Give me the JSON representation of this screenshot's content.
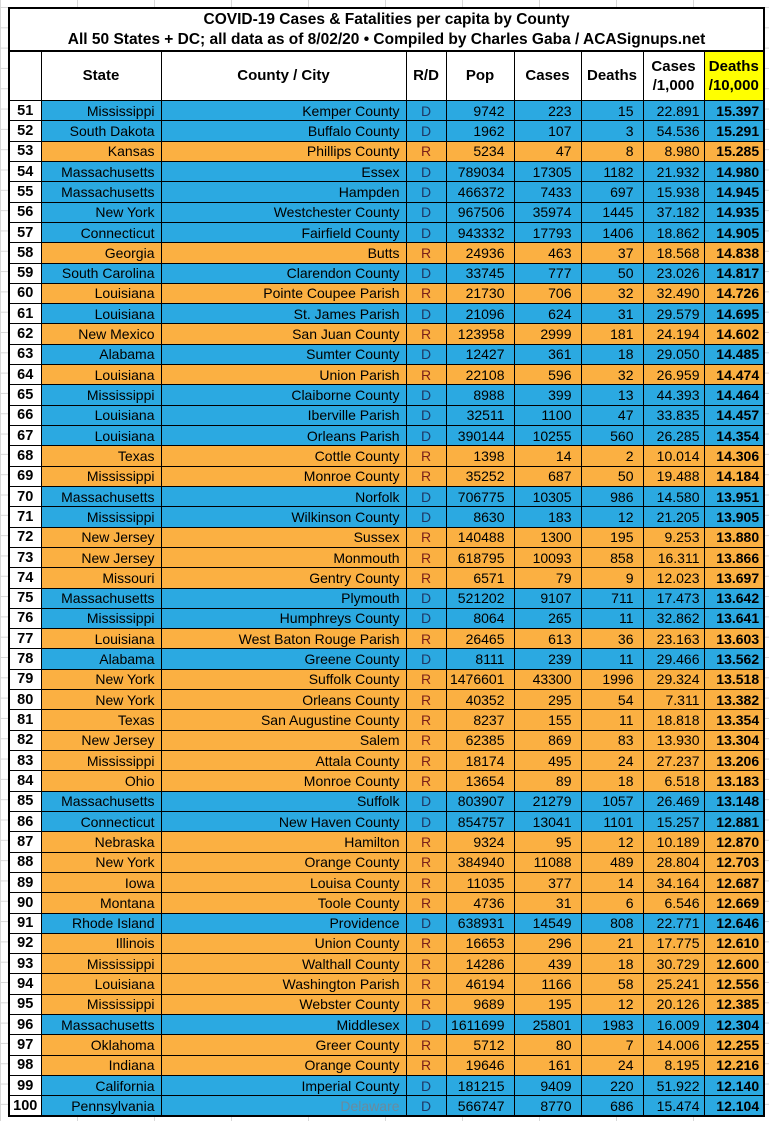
{
  "title": {
    "line1": "COVID-19 Cases & Fatalities per capita by County",
    "line2": "All 50 States + DC; all data as of 8/02/20 • Compiled by Charles Gaba / ACASignups.net"
  },
  "colors": {
    "dem_row": "#2ba9e1",
    "rep_row": "#fbb042",
    "header_highlight": "#ffff00",
    "dem_letter": "#1f3864",
    "rep_letter": "#7b2018",
    "muted_county": "#6c8a9c"
  },
  "columns": [
    {
      "key": "n",
      "label": ""
    },
    {
      "key": "state",
      "label": "State"
    },
    {
      "key": "county",
      "label": "County / City"
    },
    {
      "key": "rd",
      "label": "R/D"
    },
    {
      "key": "pop",
      "label": "Pop"
    },
    {
      "key": "cases",
      "label": "Cases"
    },
    {
      "key": "deaths",
      "label": "Deaths"
    },
    {
      "key": "cases_k",
      "label": "Cases",
      "label2": "/1,000"
    },
    {
      "key": "deaths_10k",
      "label": "Deaths",
      "label2": "/10,000",
      "highlight": true
    }
  ],
  "rows": [
    {
      "n": "51",
      "state": "Mississippi",
      "county": "Kemper County",
      "rd": "D",
      "pop": "9742",
      "cases": "223",
      "deaths": "15",
      "cases_k": "22.891",
      "deaths_10k": "15.397"
    },
    {
      "n": "52",
      "state": "South Dakota",
      "county": "Buffalo County",
      "rd": "D",
      "pop": "1962",
      "cases": "107",
      "deaths": "3",
      "cases_k": "54.536",
      "deaths_10k": "15.291"
    },
    {
      "n": "53",
      "state": "Kansas",
      "county": "Phillips County",
      "rd": "R",
      "pop": "5234",
      "cases": "47",
      "deaths": "8",
      "cases_k": "8.980",
      "deaths_10k": "15.285"
    },
    {
      "n": "54",
      "state": "Massachusetts",
      "county": "Essex",
      "rd": "D",
      "pop": "789034",
      "cases": "17305",
      "deaths": "1182",
      "cases_k": "21.932",
      "deaths_10k": "14.980"
    },
    {
      "n": "55",
      "state": "Massachusetts",
      "county": "Hampden",
      "rd": "D",
      "pop": "466372",
      "cases": "7433",
      "deaths": "697",
      "cases_k": "15.938",
      "deaths_10k": "14.945"
    },
    {
      "n": "56",
      "state": "New York",
      "county": "Westchester County",
      "rd": "D",
      "pop": "967506",
      "cases": "35974",
      "deaths": "1445",
      "cases_k": "37.182",
      "deaths_10k": "14.935"
    },
    {
      "n": "57",
      "state": "Connecticut",
      "county": "Fairfield County",
      "rd": "D",
      "pop": "943332",
      "cases": "17793",
      "deaths": "1406",
      "cases_k": "18.862",
      "deaths_10k": "14.905"
    },
    {
      "n": "58",
      "state": "Georgia",
      "county": "Butts",
      "rd": "R",
      "pop": "24936",
      "cases": "463",
      "deaths": "37",
      "cases_k": "18.568",
      "deaths_10k": "14.838"
    },
    {
      "n": "59",
      "state": "South Carolina",
      "county": "Clarendon County",
      "rd": "D",
      "pop": "33745",
      "cases": "777",
      "deaths": "50",
      "cases_k": "23.026",
      "deaths_10k": "14.817"
    },
    {
      "n": "60",
      "state": "Louisiana",
      "county": "Pointe Coupee Parish",
      "rd": "R",
      "pop": "21730",
      "cases": "706",
      "deaths": "32",
      "cases_k": "32.490",
      "deaths_10k": "14.726"
    },
    {
      "n": "61",
      "state": "Louisiana",
      "county": "St. James Parish",
      "rd": "D",
      "pop": "21096",
      "cases": "624",
      "deaths": "31",
      "cases_k": "29.579",
      "deaths_10k": "14.695"
    },
    {
      "n": "62",
      "state": "New Mexico",
      "county": "San Juan County",
      "rd": "R",
      "pop": "123958",
      "cases": "2999",
      "deaths": "181",
      "cases_k": "24.194",
      "deaths_10k": "14.602"
    },
    {
      "n": "63",
      "state": "Alabama",
      "county": "Sumter County",
      "rd": "D",
      "pop": "12427",
      "cases": "361",
      "deaths": "18",
      "cases_k": "29.050",
      "deaths_10k": "14.485"
    },
    {
      "n": "64",
      "state": "Louisiana",
      "county": "Union Parish",
      "rd": "R",
      "pop": "22108",
      "cases": "596",
      "deaths": "32",
      "cases_k": "26.959",
      "deaths_10k": "14.474"
    },
    {
      "n": "65",
      "state": "Mississippi",
      "county": "Claiborne County",
      "rd": "D",
      "pop": "8988",
      "cases": "399",
      "deaths": "13",
      "cases_k": "44.393",
      "deaths_10k": "14.464"
    },
    {
      "n": "66",
      "state": "Louisiana",
      "county": "Iberville Parish",
      "rd": "D",
      "pop": "32511",
      "cases": "1100",
      "deaths": "47",
      "cases_k": "33.835",
      "deaths_10k": "14.457"
    },
    {
      "n": "67",
      "state": "Louisiana",
      "county": "Orleans Parish",
      "rd": "D",
      "pop": "390144",
      "cases": "10255",
      "deaths": "560",
      "cases_k": "26.285",
      "deaths_10k": "14.354"
    },
    {
      "n": "68",
      "state": "Texas",
      "county": "Cottle County",
      "rd": "R",
      "pop": "1398",
      "cases": "14",
      "deaths": "2",
      "cases_k": "10.014",
      "deaths_10k": "14.306"
    },
    {
      "n": "69",
      "state": "Mississippi",
      "county": "Monroe County",
      "rd": "R",
      "pop": "35252",
      "cases": "687",
      "deaths": "50",
      "cases_k": "19.488",
      "deaths_10k": "14.184"
    },
    {
      "n": "70",
      "state": "Massachusetts",
      "county": "Norfolk",
      "rd": "D",
      "pop": "706775",
      "cases": "10305",
      "deaths": "986",
      "cases_k": "14.580",
      "deaths_10k": "13.951"
    },
    {
      "n": "71",
      "state": "Mississippi",
      "county": "Wilkinson County",
      "rd": "D",
      "pop": "8630",
      "cases": "183",
      "deaths": "12",
      "cases_k": "21.205",
      "deaths_10k": "13.905"
    },
    {
      "n": "72",
      "state": "New Jersey",
      "county": "Sussex",
      "rd": "R",
      "pop": "140488",
      "cases": "1300",
      "deaths": "195",
      "cases_k": "9.253",
      "deaths_10k": "13.880"
    },
    {
      "n": "73",
      "state": "New Jersey",
      "county": "Monmouth",
      "rd": "R",
      "pop": "618795",
      "cases": "10093",
      "deaths": "858",
      "cases_k": "16.311",
      "deaths_10k": "13.866"
    },
    {
      "n": "74",
      "state": "Missouri",
      "county": "Gentry County",
      "rd": "R",
      "pop": "6571",
      "cases": "79",
      "deaths": "9",
      "cases_k": "12.023",
      "deaths_10k": "13.697"
    },
    {
      "n": "75",
      "state": "Massachusetts",
      "county": "Plymouth",
      "rd": "D",
      "pop": "521202",
      "cases": "9107",
      "deaths": "711",
      "cases_k": "17.473",
      "deaths_10k": "13.642"
    },
    {
      "n": "76",
      "state": "Mississippi",
      "county": "Humphreys County",
      "rd": "D",
      "pop": "8064",
      "cases": "265",
      "deaths": "11",
      "cases_k": "32.862",
      "deaths_10k": "13.641"
    },
    {
      "n": "77",
      "state": "Louisiana",
      "county": "West Baton Rouge Parish",
      "rd": "R",
      "pop": "26465",
      "cases": "613",
      "deaths": "36",
      "cases_k": "23.163",
      "deaths_10k": "13.603"
    },
    {
      "n": "78",
      "state": "Alabama",
      "county": "Greene County",
      "rd": "D",
      "pop": "8111",
      "cases": "239",
      "deaths": "11",
      "cases_k": "29.466",
      "deaths_10k": "13.562"
    },
    {
      "n": "79",
      "state": "New York",
      "county": "Suffolk County",
      "rd": "R",
      "pop": "1476601",
      "cases": "43300",
      "deaths": "1996",
      "cases_k": "29.324",
      "deaths_10k": "13.518"
    },
    {
      "n": "80",
      "state": "New York",
      "county": "Orleans County",
      "rd": "R",
      "pop": "40352",
      "cases": "295",
      "deaths": "54",
      "cases_k": "7.311",
      "deaths_10k": "13.382"
    },
    {
      "n": "81",
      "state": "Texas",
      "county": "San Augustine County",
      "rd": "R",
      "pop": "8237",
      "cases": "155",
      "deaths": "11",
      "cases_k": "18.818",
      "deaths_10k": "13.354"
    },
    {
      "n": "82",
      "state": "New Jersey",
      "county": "Salem",
      "rd": "R",
      "pop": "62385",
      "cases": "869",
      "deaths": "83",
      "cases_k": "13.930",
      "deaths_10k": "13.304"
    },
    {
      "n": "83",
      "state": "Mississippi",
      "county": "Attala County",
      "rd": "R",
      "pop": "18174",
      "cases": "495",
      "deaths": "24",
      "cases_k": "27.237",
      "deaths_10k": "13.206"
    },
    {
      "n": "84",
      "state": "Ohio",
      "county": "Monroe County",
      "rd": "R",
      "pop": "13654",
      "cases": "89",
      "deaths": "18",
      "cases_k": "6.518",
      "deaths_10k": "13.183"
    },
    {
      "n": "85",
      "state": "Massachusetts",
      "county": "Suffolk",
      "rd": "D",
      "pop": "803907",
      "cases": "21279",
      "deaths": "1057",
      "cases_k": "26.469",
      "deaths_10k": "13.148"
    },
    {
      "n": "86",
      "state": "Connecticut",
      "county": "New Haven County",
      "rd": "D",
      "pop": "854757",
      "cases": "13041",
      "deaths": "1101",
      "cases_k": "15.257",
      "deaths_10k": "12.881"
    },
    {
      "n": "87",
      "state": "Nebraska",
      "county": "Hamilton",
      "rd": "R",
      "pop": "9324",
      "cases": "95",
      "deaths": "12",
      "cases_k": "10.189",
      "deaths_10k": "12.870"
    },
    {
      "n": "88",
      "state": "New York",
      "county": "Orange County",
      "rd": "R",
      "pop": "384940",
      "cases": "11088",
      "deaths": "489",
      "cases_k": "28.804",
      "deaths_10k": "12.703"
    },
    {
      "n": "89",
      "state": "Iowa",
      "county": "Louisa County",
      "rd": "R",
      "pop": "11035",
      "cases": "377",
      "deaths": "14",
      "cases_k": "34.164",
      "deaths_10k": "12.687"
    },
    {
      "n": "90",
      "state": "Montana",
      "county": "Toole County",
      "rd": "R",
      "pop": "4736",
      "cases": "31",
      "deaths": "6",
      "cases_k": "6.546",
      "deaths_10k": "12.669"
    },
    {
      "n": "91",
      "state": "Rhode Island",
      "county": "Providence",
      "rd": "D",
      "pop": "638931",
      "cases": "14549",
      "deaths": "808",
      "cases_k": "22.771",
      "deaths_10k": "12.646"
    },
    {
      "n": "92",
      "state": "Illinois",
      "county": "Union County",
      "rd": "R",
      "pop": "16653",
      "cases": "296",
      "deaths": "21",
      "cases_k": "17.775",
      "deaths_10k": "12.610"
    },
    {
      "n": "93",
      "state": "Mississippi",
      "county": "Walthall County",
      "rd": "R",
      "pop": "14286",
      "cases": "439",
      "deaths": "18",
      "cases_k": "30.729",
      "deaths_10k": "12.600"
    },
    {
      "n": "94",
      "state": "Louisiana",
      "county": "Washington Parish",
      "rd": "R",
      "pop": "46194",
      "cases": "1166",
      "deaths": "58",
      "cases_k": "25.241",
      "deaths_10k": "12.556"
    },
    {
      "n": "95",
      "state": "Mississippi",
      "county": "Webster County",
      "rd": "R",
      "pop": "9689",
      "cases": "195",
      "deaths": "12",
      "cases_k": "20.126",
      "deaths_10k": "12.385"
    },
    {
      "n": "96",
      "state": "Massachusetts",
      "county": "Middlesex",
      "rd": "D",
      "pop": "1611699",
      "cases": "25801",
      "deaths": "1983",
      "cases_k": "16.009",
      "deaths_10k": "12.304"
    },
    {
      "n": "97",
      "state": "Oklahoma",
      "county": "Greer County",
      "rd": "R",
      "pop": "5712",
      "cases": "80",
      "deaths": "7",
      "cases_k": "14.006",
      "deaths_10k": "12.255"
    },
    {
      "n": "98",
      "state": "Indiana",
      "county": "Orange County",
      "rd": "R",
      "pop": "19646",
      "cases": "161",
      "deaths": "24",
      "cases_k": "8.195",
      "deaths_10k": "12.216"
    },
    {
      "n": "99",
      "state": "California",
      "county": "Imperial County",
      "rd": "D",
      "pop": "181215",
      "cases": "9409",
      "deaths": "220",
      "cases_k": "51.922",
      "deaths_10k": "12.140"
    },
    {
      "n": "100",
      "state": "Pennsylvania",
      "county": "Delaware",
      "rd": "D",
      "pop": "566747",
      "cases": "8770",
      "deaths": "686",
      "cases_k": "15.474",
      "deaths_10k": "12.104",
      "county_muted": true
    }
  ]
}
